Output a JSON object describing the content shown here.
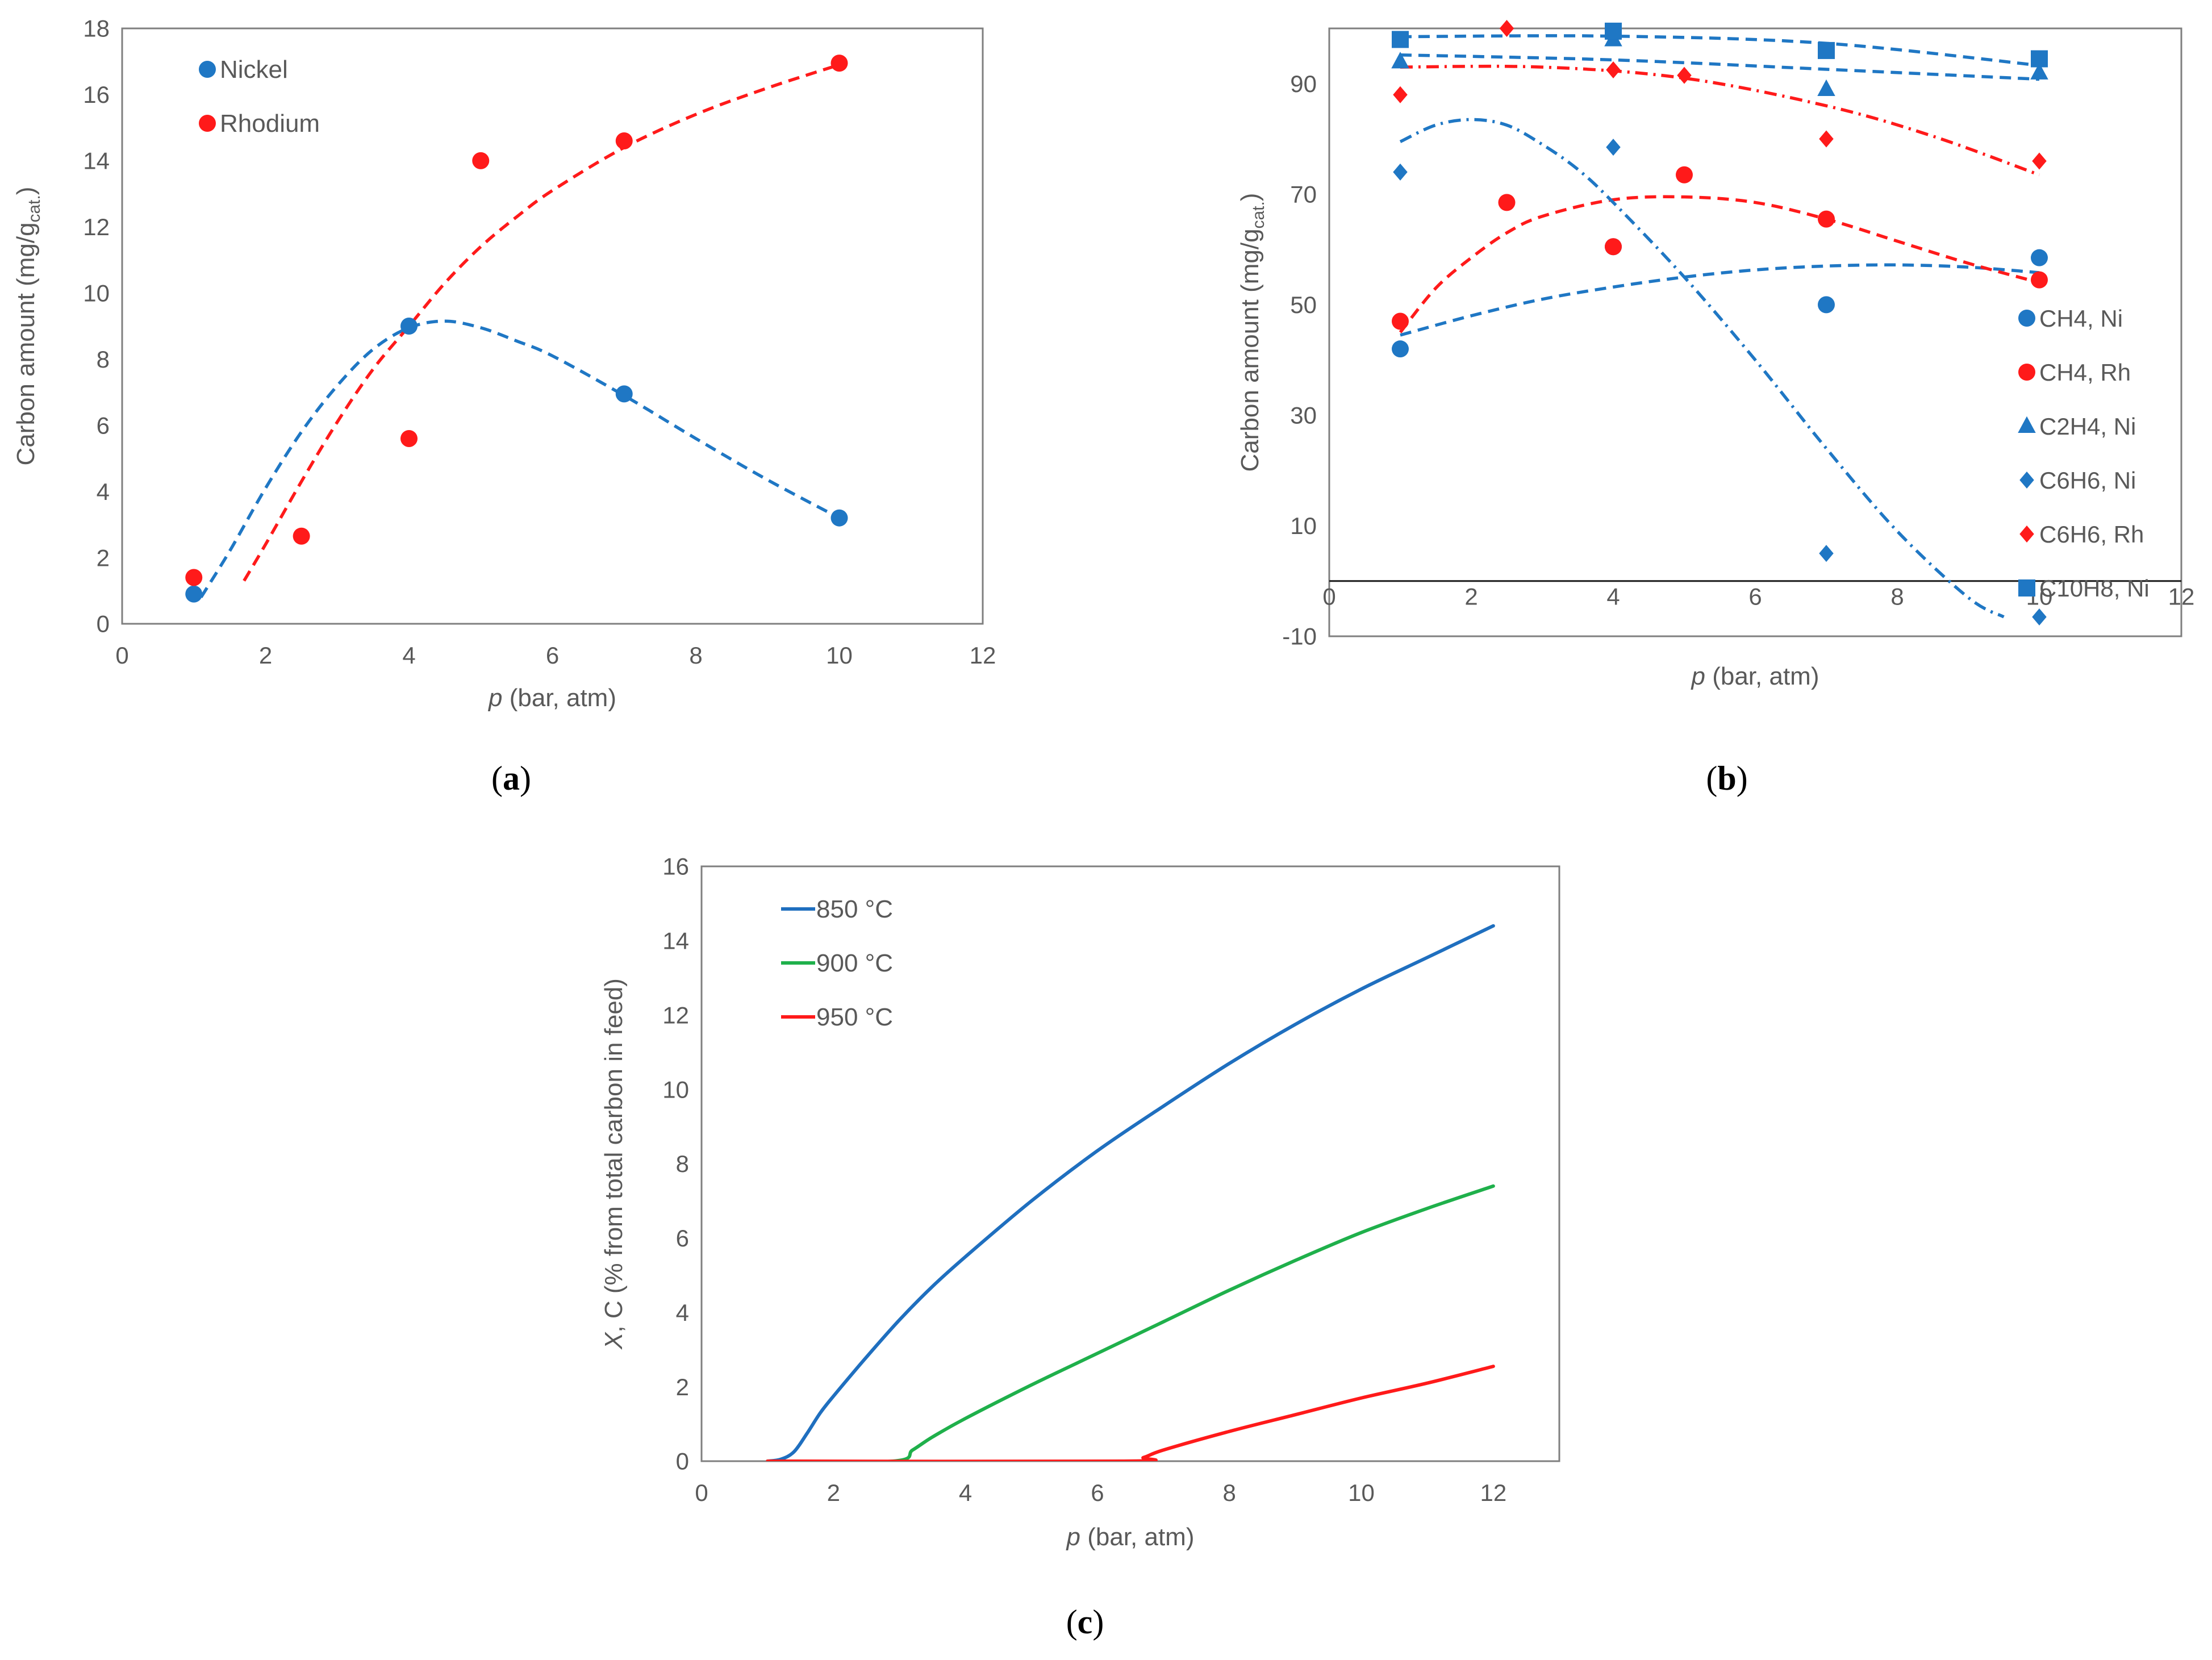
{
  "chart_data": [
    {
      "id": "a",
      "type": "scatter",
      "panel_label": "a",
      "title": "",
      "xlabel_italic": "p",
      "xlabel_rest": " (bar, atm)",
      "ylabel_main": "Carbon amount (mg/g",
      "ylabel_sub": "cat.",
      "ylabel_close": ")",
      "xlim": [
        0,
        12
      ],
      "ylim": [
        0,
        18
      ],
      "xticks": [
        0,
        2,
        4,
        6,
        8,
        10,
        12
      ],
      "yticks": [
        0,
        2,
        4,
        6,
        8,
        10,
        12,
        14,
        16,
        18
      ],
      "legend_position": "top-left",
      "series": [
        {
          "name": "Nickel",
          "color": "#1f77c4",
          "marker": "circle",
          "points": [
            [
              1,
              0.9
            ],
            [
              4,
              9.0
            ],
            [
              7,
              6.95
            ],
            [
              10,
              3.2
            ]
          ],
          "trend": [
            [
              1.1,
              0.8
            ],
            [
              1.5,
              2.2
            ],
            [
              2,
              4.1
            ],
            [
              2.5,
              5.8
            ],
            [
              3,
              7.2
            ],
            [
              3.5,
              8.3
            ],
            [
              4,
              8.95
            ],
            [
              4.5,
              9.15
            ],
            [
              5,
              8.95
            ],
            [
              5.5,
              8.55
            ],
            [
              6,
              8.1
            ],
            [
              7,
              6.9
            ],
            [
              8,
              5.6
            ],
            [
              9,
              4.35
            ],
            [
              10,
              3.2
            ]
          ]
        },
        {
          "name": "Rhodium",
          "color": "#ff1a1a",
          "marker": "circle",
          "points": [
            [
              1,
              1.4
            ],
            [
              2.5,
              2.65
            ],
            [
              4,
              5.6
            ],
            [
              5,
              14.0
            ],
            [
              7,
              14.6
            ],
            [
              10,
              16.95
            ]
          ],
          "trend": [
            [
              1.7,
              1.3
            ],
            [
              2,
              2.4
            ],
            [
              2.5,
              4.3
            ],
            [
              3,
              6.1
            ],
            [
              3.5,
              7.7
            ],
            [
              4,
              9.0
            ],
            [
              4.5,
              10.3
            ],
            [
              5,
              11.4
            ],
            [
              5.5,
              12.3
            ],
            [
              6,
              13.1
            ],
            [
              7,
              14.4
            ],
            [
              8,
              15.4
            ],
            [
              9,
              16.2
            ],
            [
              10,
              16.9
            ]
          ]
        }
      ]
    },
    {
      "id": "b",
      "type": "scatter",
      "panel_label": "b",
      "title": "",
      "xlabel_italic": "p",
      "xlabel_rest": " (bar, atm)",
      "ylabel_main": "Carbon amount (mg/g",
      "ylabel_sub": "cat.",
      "ylabel_close": ")",
      "xlim": [
        0,
        12
      ],
      "ylim": [
        -10,
        100
      ],
      "xticks": [
        0,
        2,
        4,
        6,
        8,
        10,
        12
      ],
      "yticks": [
        -10,
        10,
        30,
        50,
        70,
        90
      ],
      "legend_position": "bottom-right",
      "series": [
        {
          "name": "CH4, Ni",
          "color": "#1f77c4",
          "marker": "circle",
          "dash": "dash",
          "points": [
            [
              1,
              42
            ],
            [
              4,
              60.5
            ],
            [
              7,
              50
            ],
            [
              10,
              58.5
            ]
          ],
          "trend": [
            [
              1,
              44.5
            ],
            [
              2,
              48
            ],
            [
              3,
              51
            ],
            [
              4,
              53.2
            ],
            [
              5,
              55
            ],
            [
              6,
              56.3
            ],
            [
              7,
              57
            ],
            [
              8,
              57.2
            ],
            [
              9,
              56.8
            ],
            [
              10,
              55.8
            ]
          ]
        },
        {
          "name": "CH4, Rh",
          "color": "#ff1a1a",
          "marker": "circle",
          "dash": "dash",
          "points": [
            [
              1,
              47
            ],
            [
              2.5,
              68.5
            ],
            [
              4,
              60.5
            ],
            [
              5,
              73.5
            ],
            [
              7,
              65.5
            ],
            [
              10,
              54.5
            ]
          ],
          "trend": [
            [
              1,
              45
            ],
            [
              1.5,
              53
            ],
            [
              2,
              58.5
            ],
            [
              2.5,
              63
            ],
            [
              3,
              66
            ],
            [
              4,
              69
            ],
            [
              5,
              69.5
            ],
            [
              6,
              68.5
            ],
            [
              7,
              65.5
            ],
            [
              8,
              61.5
            ],
            [
              9,
              57.5
            ],
            [
              10,
              54
            ]
          ]
        },
        {
          "name": "C2H4, Ni",
          "color": "#1f77c4",
          "marker": "triangle",
          "dash": "dash",
          "points": [
            [
              1,
              94
            ],
            [
              4,
              98
            ],
            [
              7,
              89
            ],
            [
              10,
              92
            ]
          ],
          "trend": [
            [
              1,
              95.2
            ],
            [
              4,
              94.3
            ],
            [
              7,
              92.6
            ],
            [
              10,
              90.8
            ]
          ]
        },
        {
          "name": "C6H6, Ni",
          "color": "#1f77c4",
          "marker": "diamond",
          "dash": "dashdot",
          "points": [
            [
              1,
              74
            ],
            [
              4,
              78.5
            ],
            [
              7,
              5
            ],
            [
              10,
              -6.5
            ]
          ],
          "trend": [
            [
              1,
              79.5
            ],
            [
              1.5,
              82.5
            ],
            [
              2,
              83.5
            ],
            [
              2.5,
              82.5
            ],
            [
              3,
              79
            ],
            [
              3.5,
              74.5
            ],
            [
              4,
              68.5
            ],
            [
              5,
              55
            ],
            [
              6,
              40
            ],
            [
              7,
              24
            ],
            [
              8,
              9
            ],
            [
              9,
              -3
            ],
            [
              9.5,
              -6.5
            ]
          ]
        },
        {
          "name": "C6H6, Rh",
          "color": "#ff1a1a",
          "marker": "diamond",
          "dash": "dashdot",
          "points": [
            [
              1,
              88
            ],
            [
              2.5,
              100
            ],
            [
              4,
              92.5
            ],
            [
              5,
              91.5
            ],
            [
              7,
              80
            ],
            [
              10,
              76
            ]
          ],
          "trend": [
            [
              1,
              93
            ],
            [
              3,
              93
            ],
            [
              5,
              91
            ],
            [
              7,
              86
            ],
            [
              8.5,
              80.5
            ],
            [
              10,
              73.5
            ]
          ]
        },
        {
          "name": "C10H8, Ni",
          "color": "#1f77c4",
          "marker": "square",
          "dash": "dash",
          "points": [
            [
              1,
              98
            ],
            [
              4,
              99.5
            ],
            [
              7,
              96
            ],
            [
              10,
              94.5
            ]
          ],
          "trend": [
            [
              1,
              98.5
            ],
            [
              4,
              98.6
            ],
            [
              7,
              97.3
            ],
            [
              10,
              93.3
            ]
          ]
        }
      ]
    },
    {
      "id": "c",
      "type": "line",
      "panel_label": "c",
      "title": "",
      "xlabel_italic": "p",
      "xlabel_rest": " (bar, atm)",
      "ylabel_italic": "X",
      "ylabel_rest": ", C (% from total carbon in feed)",
      "xlim": [
        0,
        13
      ],
      "ylim": [
        0,
        16
      ],
      "xticks": [
        0,
        2,
        4,
        6,
        8,
        10,
        12
      ],
      "yticks": [
        0,
        2,
        4,
        6,
        8,
        10,
        12,
        14,
        16
      ],
      "legend_position": "top-left",
      "series": [
        {
          "name": "850 °C",
          "color": "#1f6fbf",
          "points": [
            [
              1,
              0
            ],
            [
              1.2,
              0.05
            ],
            [
              1.4,
              0.25
            ],
            [
              1.6,
              0.75
            ],
            [
              1.8,
              1.3
            ],
            [
              2,
              1.75
            ],
            [
              2.5,
              2.8
            ],
            [
              3,
              3.8
            ],
            [
              3.5,
              4.7
            ],
            [
              4,
              5.5
            ],
            [
              5,
              7.0
            ],
            [
              6,
              8.35
            ],
            [
              7,
              9.55
            ],
            [
              8,
              10.7
            ],
            [
              9,
              11.75
            ],
            [
              10,
              12.7
            ],
            [
              11,
              13.55
            ],
            [
              12,
              14.4
            ]
          ]
        },
        {
          "name": "900 °C",
          "color": "#1fb04b",
          "points": [
            [
              1,
              0
            ],
            [
              2.9,
              0
            ],
            [
              3.2,
              0.3
            ],
            [
              3.5,
              0.65
            ],
            [
              4,
              1.15
            ],
            [
              5,
              2.05
            ],
            [
              6,
              2.9
            ],
            [
              7,
              3.75
            ],
            [
              8,
              4.6
            ],
            [
              9,
              5.4
            ],
            [
              10,
              6.15
            ],
            [
              11,
              6.8
            ],
            [
              12,
              7.4
            ]
          ]
        },
        {
          "name": "950 °C",
          "color": "#ff1a1a",
          "points": [
            [
              1,
              0
            ],
            [
              6.4,
              0
            ],
            [
              6.7,
              0.1
            ],
            [
              7,
              0.3
            ],
            [
              8,
              0.8
            ],
            [
              9,
              1.25
            ],
            [
              10,
              1.7
            ],
            [
              11,
              2.1
            ],
            [
              12,
              2.55
            ]
          ]
        }
      ]
    }
  ]
}
